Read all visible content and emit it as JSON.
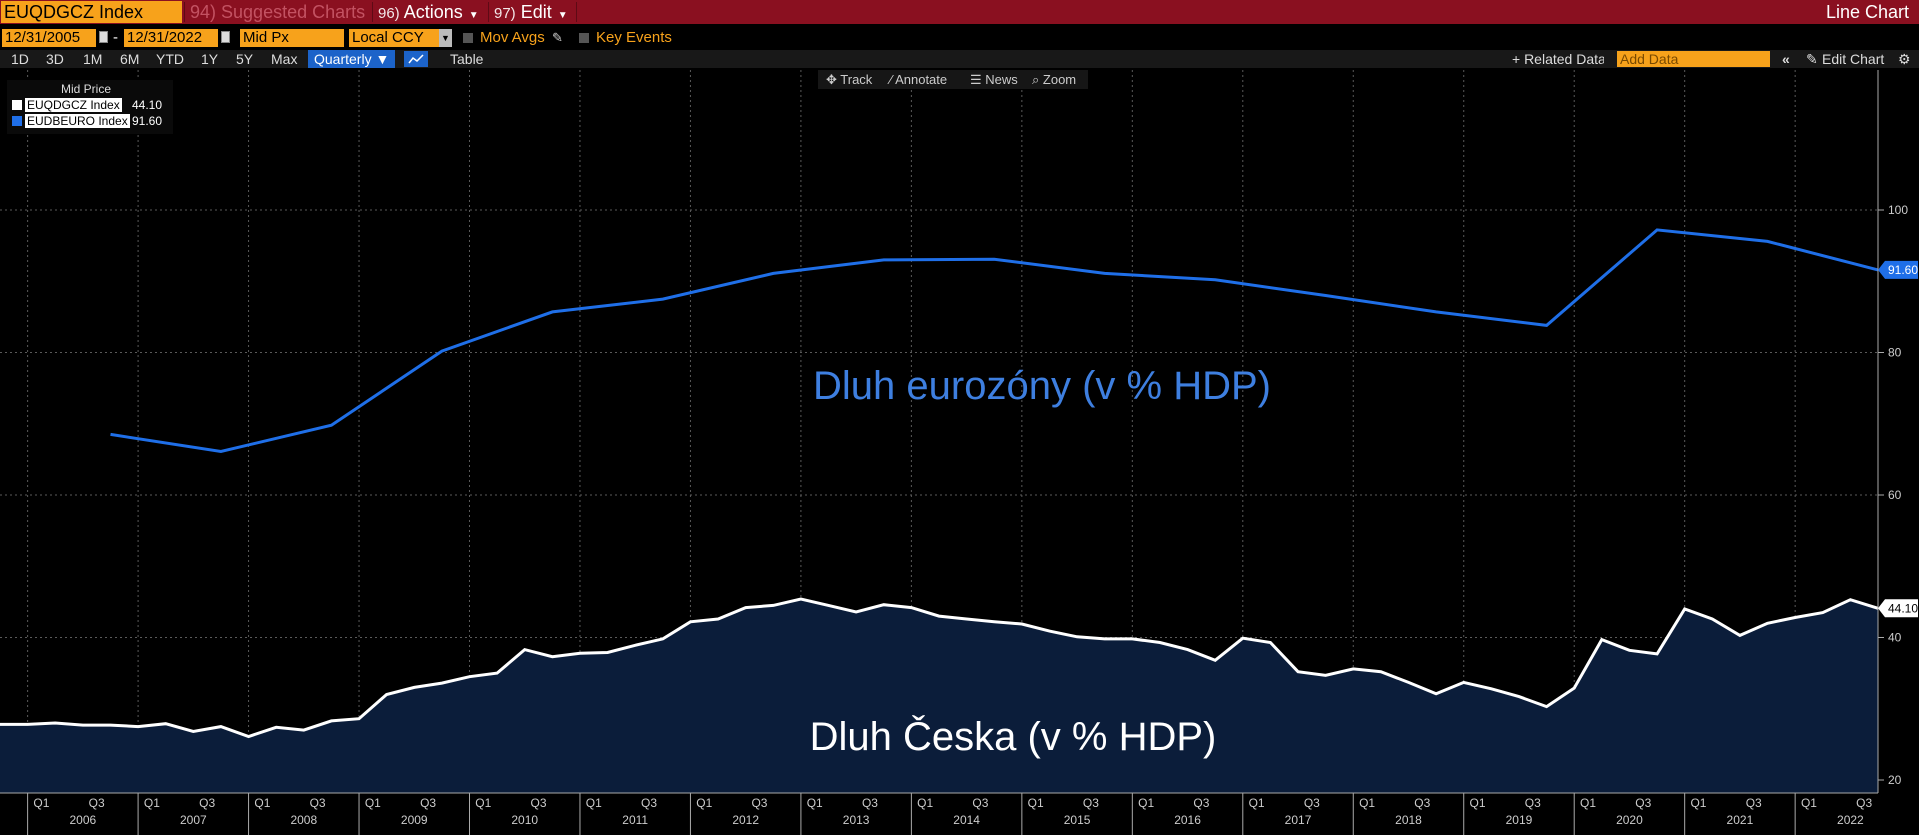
{
  "toolbar": {
    "ticker": "EUQDGCZ Index",
    "menu": [
      {
        "num": "94)",
        "label": "Suggested Charts"
      },
      {
        "num": "96)",
        "label": "Actions"
      },
      {
        "num": "97)",
        "label": "Edit"
      }
    ],
    "chart_type": "Line Chart"
  },
  "controls": {
    "start_date": "12/31/2005",
    "dash": "-",
    "end_date": "12/31/2022",
    "price_type": "Mid Px",
    "currency": "Local CCY",
    "mov_avgs": "Mov Avgs",
    "key_events": "Key Events"
  },
  "periods": [
    "1D",
    "3D",
    "1M",
    "6M",
    "YTD",
    "1Y",
    "5Y",
    "Max"
  ],
  "frequency": "Quarterly ▼",
  "table_label": "Table",
  "related_data": "+ Related Data",
  "add_data_placeholder": "Add Data",
  "edit_chart": "Edit Chart",
  "chart_tools": [
    "Track",
    "Annotate",
    "News",
    "Zoom"
  ],
  "legend": {
    "title": "Mid Price",
    "items": [
      {
        "name": "EUQDGCZ Index",
        "value": "44.10",
        "color": "#ffffff"
      },
      {
        "name": "EUDBEURO Index",
        "value": "91.60",
        "color": "#1f6fe8"
      }
    ]
  },
  "annotations": {
    "euro": "Dluh eurozóny (v % HDP)",
    "cz": "Dluh Česka (v % HDP)"
  },
  "chart_data": {
    "type": "line",
    "ylim": [
      18,
      120
    ],
    "yticks": [
      20,
      40,
      60,
      80,
      100
    ],
    "x_range": [
      2005.75,
      2022.75
    ],
    "years": [
      "2006",
      "2007",
      "2008",
      "2009",
      "2010",
      "2011",
      "2012",
      "2013",
      "2014",
      "2015",
      "2016",
      "2017",
      "2018",
      "2019",
      "2020",
      "2021",
      "2022"
    ],
    "quarter_labels": [
      "Q1",
      "Q3"
    ],
    "last_labels": {
      "euro": "91.60",
      "cz": "44.10"
    },
    "series": [
      {
        "name": "EUDBEURO Index",
        "color": "#1f6fe8",
        "x": [
          2006.75,
          2007.75,
          2008.75,
          2009.75,
          2010.75,
          2011.75,
          2012.75,
          2013.75,
          2014.75,
          2015.75,
          2016.75,
          2017.75,
          2018.75,
          2019.75,
          2020.75,
          2021.75,
          2022.75
        ],
        "values": [
          68.5,
          66.1,
          69.8,
          80.2,
          85.7,
          87.5,
          91.1,
          93.0,
          93.1,
          91.1,
          90.2,
          88.0,
          85.7,
          83.8,
          97.2,
          95.6,
          91.6
        ]
      },
      {
        "name": "EUQDGCZ Index",
        "color": "#ffffff",
        "fill": "#0b1d3a",
        "x": [
          2005.75,
          2006.0,
          2006.25,
          2006.5,
          2006.75,
          2007.0,
          2007.25,
          2007.5,
          2007.75,
          2008.0,
          2008.25,
          2008.5,
          2008.75,
          2009.0,
          2009.25,
          2009.5,
          2009.75,
          2010.0,
          2010.25,
          2010.5,
          2010.75,
          2011.0,
          2011.25,
          2011.5,
          2011.75,
          2012.0,
          2012.25,
          2012.5,
          2012.75,
          2013.0,
          2013.25,
          2013.5,
          2013.75,
          2014.0,
          2014.25,
          2014.5,
          2014.75,
          2015.0,
          2015.25,
          2015.5,
          2015.75,
          2016.0,
          2016.25,
          2016.5,
          2016.75,
          2017.0,
          2017.25,
          2017.5,
          2017.75,
          2018.0,
          2018.25,
          2018.5,
          2018.75,
          2019.0,
          2019.25,
          2019.5,
          2019.75,
          2020.0,
          2020.25,
          2020.5,
          2020.75,
          2021.0,
          2021.25,
          2021.5,
          2021.75,
          2022.0,
          2022.25,
          2022.5,
          2022.75
        ],
        "values": [
          27.8,
          27.8,
          28.0,
          27.7,
          27.7,
          27.5,
          27.9,
          26.8,
          27.5,
          26.1,
          27.4,
          27.0,
          28.3,
          28.6,
          32.0,
          33.0,
          33.6,
          34.5,
          35.0,
          38.3,
          37.3,
          37.8,
          37.9,
          38.9,
          39.8,
          42.2,
          42.6,
          44.2,
          44.5,
          45.4,
          44.5,
          43.6,
          44.6,
          44.2,
          43.0,
          42.6,
          42.2,
          41.9,
          40.9,
          40.1,
          39.8,
          39.8,
          39.3,
          38.3,
          36.8,
          39.9,
          39.3,
          35.2,
          34.7,
          35.6,
          35.2,
          33.7,
          32.1,
          33.7,
          32.8,
          31.7,
          30.3,
          32.9,
          39.7,
          38.2,
          37.7,
          44.0,
          42.6,
          40.3,
          42.0,
          42.8,
          43.5,
          45.3,
          44.1
        ]
      }
    ]
  }
}
